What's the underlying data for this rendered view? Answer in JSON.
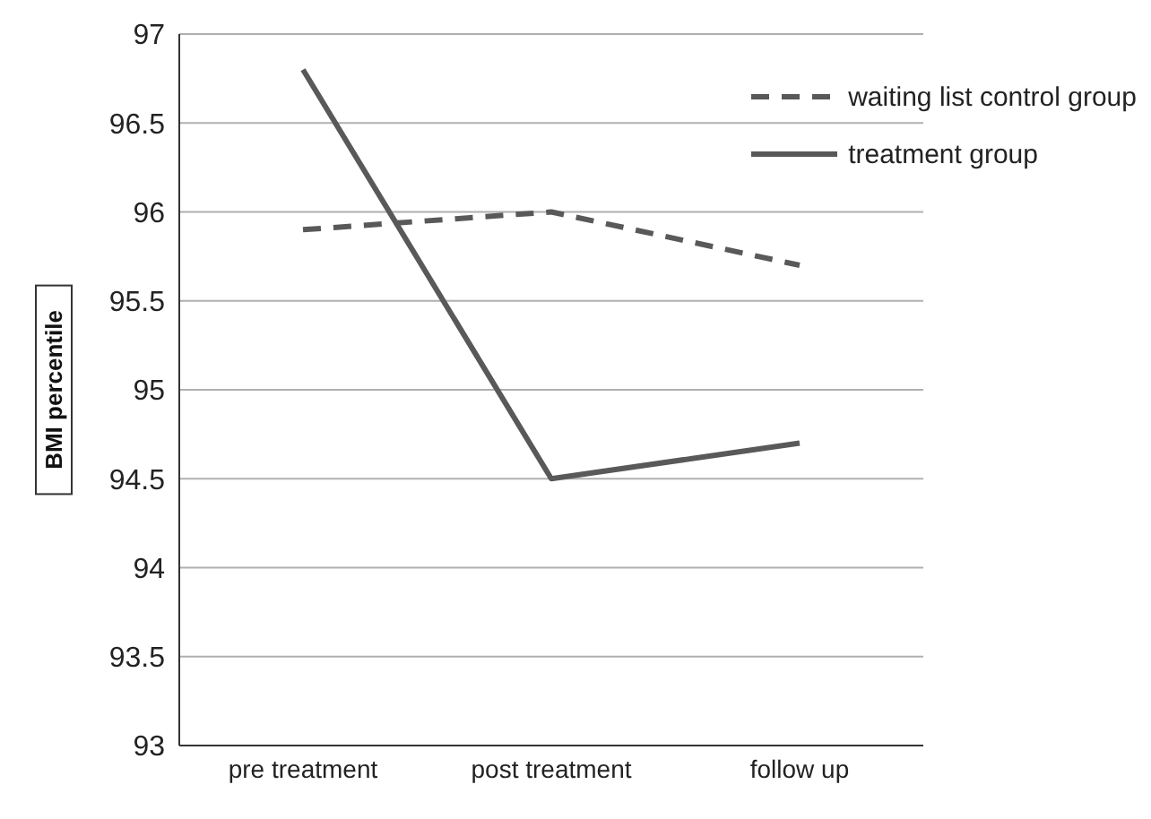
{
  "chart_data": {
    "type": "line",
    "ylabel": "BMI percentile",
    "categories": [
      "pre treatment",
      "post treatment",
      "follow up"
    ],
    "series": [
      {
        "name": "waiting list control group",
        "color": "#595959",
        "line_style": "dashed",
        "values": [
          95.9,
          96.0,
          95.7
        ]
      },
      {
        "name": "treatment group",
        "color": "#595959",
        "line_style": "solid",
        "values": [
          96.8,
          94.5,
          94.7
        ]
      }
    ],
    "ylim": [
      93,
      97
    ],
    "yticks": [
      93,
      93.5,
      94,
      94.5,
      95,
      95.5,
      96,
      96.5,
      97
    ],
    "grid": "y",
    "legend": "top right",
    "marker": "none"
  }
}
